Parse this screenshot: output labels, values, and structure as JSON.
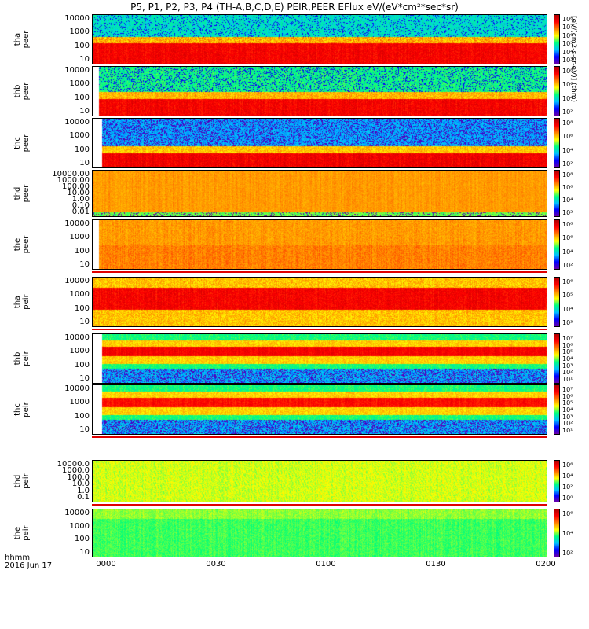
{
  "title": "P5, P1, P2, P3, P4 (TH-A,B,C,D,E) PEIR,PEER EFlux eV/(eV*cm²*sec*sr)",
  "x_axis": {
    "label_line1": "hhmm",
    "label_line2": "2016 Jun 17",
    "ticks": [
      "0000",
      "0030",
      "0100",
      "0130",
      "0200"
    ]
  },
  "colorbar_units": "[eV/(cm2-s-sr-eV)] (thm)",
  "chart_data": [
    {
      "type": "heatmap",
      "probe": "tha",
      "species": "peer",
      "ylabel": "tha\npeer",
      "yticks": [
        "10000",
        "1000",
        "100",
        "10"
      ],
      "ylim": [
        10,
        10000
      ],
      "colorbar_ticks": [
        "10⁸",
        "10⁷",
        "10⁶",
        "10⁵",
        "10⁴",
        "10³"
      ],
      "band": "high flux 10-300 eV, low flux above 1000 eV"
    },
    {
      "type": "heatmap",
      "probe": "thb",
      "species": "peer",
      "ylabel": "thb\npeer",
      "yticks": [
        "10000",
        "1000",
        "100",
        "10"
      ],
      "ylim": [
        10,
        10000
      ],
      "colorbar_ticks": [
        "10⁸",
        "10⁶",
        "10⁴",
        "10²"
      ],
      "band": "high flux 10-200 eV"
    },
    {
      "type": "heatmap",
      "probe": "thc",
      "species": "peer",
      "ylabel": "thc\npeer",
      "yticks": [
        "10000",
        "1000",
        "100",
        "10"
      ],
      "ylim": [
        10,
        10000
      ],
      "colorbar_ticks": [
        "10⁸",
        "10⁶",
        "10⁴",
        "10²"
      ],
      "band": "high flux 10-100 eV"
    },
    {
      "type": "heatmap",
      "probe": "thd",
      "species": "peer",
      "ylabel": "thd\npeer",
      "yticks": [
        "10000.00",
        "1000.00",
        "100.00",
        "10.00",
        "1.00",
        "0.10",
        "0.01"
      ],
      "ylim": [
        0.01,
        10000
      ],
      "colorbar_ticks": [
        "10⁸",
        "10⁶",
        "10⁴",
        "10²"
      ],
      "band": "uniform orange"
    },
    {
      "type": "heatmap",
      "probe": "the",
      "species": "peer",
      "ylabel": "the\npeer",
      "yticks": [
        "10000",
        "1000",
        "100",
        "10"
      ],
      "ylim": [
        10,
        10000
      ],
      "colorbar_ticks": [
        "10⁸",
        "10⁶",
        "10⁴",
        "10²"
      ],
      "band": "uniform orange"
    },
    {
      "type": "heatmap",
      "probe": "tha",
      "species": "peir",
      "ylabel": "tha\npeir",
      "yticks": [
        "10000",
        "1000",
        "100",
        "10"
      ],
      "ylim": [
        10,
        10000
      ],
      "colorbar_ticks": [
        "10⁶",
        "10⁵",
        "10⁴",
        "10³"
      ],
      "band": "high flux 300-5000 eV"
    },
    {
      "type": "heatmap",
      "probe": "thb",
      "species": "peir",
      "ylabel": "thb\npeir",
      "yticks": [
        "10000",
        "1000",
        "100",
        "10"
      ],
      "ylim": [
        10,
        10000
      ],
      "colorbar_ticks": [
        "10⁷",
        "10⁶",
        "10⁵",
        "10⁴",
        "10³",
        "10²",
        "10¹"
      ],
      "band": "high flux 500-3000 eV"
    },
    {
      "type": "heatmap",
      "probe": "thc",
      "species": "peir",
      "ylabel": "thc\npeir",
      "yticks": [
        "10000",
        "1000",
        "100",
        "10"
      ],
      "ylim": [
        10,
        10000
      ],
      "colorbar_ticks": [
        "10⁷",
        "10⁶",
        "10⁵",
        "10⁴",
        "10³",
        "10²",
        "10¹"
      ],
      "band": "high flux 500-3000 eV"
    },
    {
      "type": "heatmap",
      "probe": "thd",
      "species": "peir",
      "ylabel": "thd\npeir",
      "yticks": [
        "10000.0",
        "1000.0",
        "100.0",
        "10.0",
        "1.0",
        "0.1"
      ],
      "ylim": [
        0.1,
        10000
      ],
      "colorbar_ticks": [
        "10⁶",
        "10⁴",
        "10²",
        "10⁰"
      ],
      "band": "uniform green-yellow"
    },
    {
      "type": "heatmap",
      "probe": "the",
      "species": "peir",
      "ylabel": "the\npeir",
      "yticks": [
        "10000",
        "1000",
        "100",
        "10"
      ],
      "ylim": [
        10,
        10000
      ],
      "colorbar_ticks": [
        "10⁶",
        "10⁴",
        "10²"
      ],
      "band": "uniform green"
    }
  ]
}
